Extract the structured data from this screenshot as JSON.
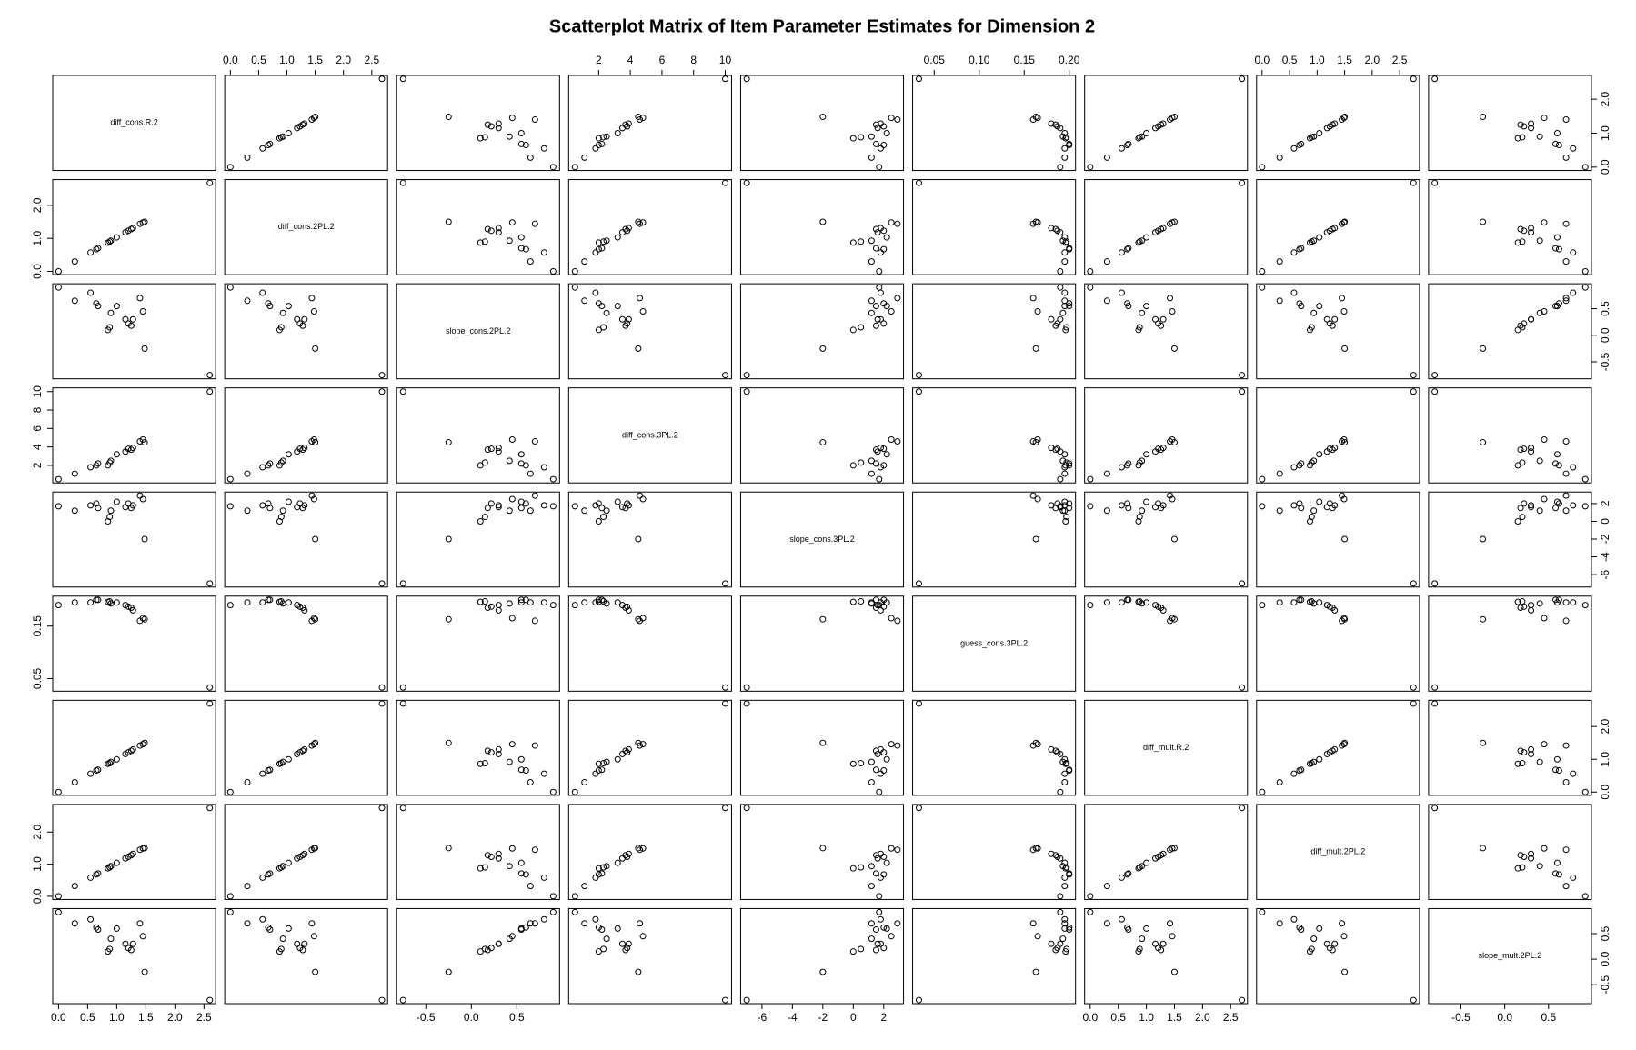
{
  "chart_data": {
    "type": "scatter-matrix",
    "title": "Scatterplot Matrix of Item Parameter Estimates for Dimension 2",
    "marker": "open-circle",
    "color": "#000000",
    "variables": [
      {
        "name": "diff_cons.R.2",
        "values": [
          0,
          0.28,
          0.55,
          0.65,
          0.68,
          0.85,
          0.88,
          0.9,
          1.0,
          1.15,
          1.2,
          1.25,
          1.28,
          1.4,
          1.45,
          1.48,
          2.6
        ],
        "lim": [
          -0.1,
          2.7
        ],
        "xticks": [
          {
            "value": 0,
            "label": "0.0"
          },
          0.5,
          {
            "value": 1,
            "label": "1.0"
          },
          1.5,
          {
            "value": 2,
            "label": "2.0"
          },
          2.5
        ],
        "yticks": [
          {
            "value": 0,
            "label": "0.0"
          },
          {
            "value": 1,
            "label": "1.0"
          },
          {
            "value": 2,
            "label": "2.0"
          }
        ]
      },
      {
        "name": "diff_cons.2PL.2",
        "values": [
          0,
          0.3,
          0.57,
          0.67,
          0.7,
          0.87,
          0.9,
          0.93,
          1.03,
          1.18,
          1.23,
          1.28,
          1.31,
          1.44,
          1.48,
          1.5,
          2.68
        ],
        "lim": [
          -0.1,
          2.78
        ],
        "xticks": [
          {
            "value": 0,
            "label": "0.0"
          },
          0.5,
          {
            "value": 1,
            "label": "1.0"
          },
          1.5,
          {
            "value": 2,
            "label": "2.0"
          },
          2.5
        ],
        "yticks": [
          {
            "value": 0,
            "label": "0.0"
          },
          {
            "value": 1,
            "label": "1.0"
          },
          {
            "value": 2,
            "label": "2.0"
          }
        ]
      },
      {
        "name": "slope_cons.2PL.2",
        "values": [
          0.9,
          0.65,
          0.8,
          0.6,
          0.55,
          0.1,
          0.15,
          0.42,
          0.55,
          0.3,
          0.22,
          0.18,
          0.3,
          0.7,
          0.45,
          -0.25,
          -0.75
        ],
        "lim": [
          -0.82,
          0.97
        ],
        "xticks": [
          -0.5,
          {
            "value": 0,
            "label": "0.0"
          },
          0.5
        ],
        "yticks": [
          -0.5,
          {
            "value": 0,
            "label": "0.0"
          },
          0.5
        ]
      },
      {
        "name": "diff_cons.3PL.2",
        "values": [
          0.5,
          1.1,
          1.8,
          2.0,
          2.2,
          2.0,
          2.3,
          2.5,
          3.2,
          3.5,
          3.8,
          3.7,
          3.9,
          4.6,
          4.8,
          4.5,
          10
        ],
        "lim": [
          0.1,
          10.4
        ],
        "xticks": [
          2,
          4,
          6,
          8,
          10
        ],
        "yticks": [
          2,
          4,
          6,
          8,
          10
        ]
      },
      {
        "name": "slope_cons.3PL.2",
        "values": [
          1.7,
          1.2,
          1.8,
          2.0,
          1.5,
          0,
          0.5,
          1.2,
          2.2,
          1.6,
          2.0,
          1.5,
          1.8,
          2.9,
          2.5,
          -2.0,
          -7
        ],
        "lim": [
          -7.4,
          3.3
        ],
        "xticks": [
          -6,
          -4,
          -2,
          0,
          2
        ],
        "yticks": [
          -6,
          -4,
          -2,
          0,
          2
        ]
      },
      {
        "name": "guess_cons.3PL.2",
        "values": [
          0.19,
          0.195,
          0.195,
          0.2,
          0.2,
          0.196,
          0.197,
          0.193,
          0.195,
          0.19,
          0.187,
          0.185,
          0.18,
          0.16,
          0.165,
          0.163,
          0.033
        ],
        "lim": [
          0.026,
          0.207
        ],
        "xticks": [
          0.05,
          {
            "value": 0.1,
            "label": "0.10"
          },
          0.15,
          {
            "value": 0.2,
            "label": "0.20"
          }
        ],
        "yticks": [
          0.05,
          0.15
        ]
      },
      {
        "name": "diff_mult.R.2",
        "values": [
          0,
          0.3,
          0.56,
          0.66,
          0.68,
          0.86,
          0.88,
          0.92,
          1.0,
          1.16,
          1.21,
          1.26,
          1.3,
          1.42,
          1.46,
          1.5,
          2.7
        ],
        "lim": [
          -0.1,
          2.8
        ],
        "xticks": [
          {
            "value": 0,
            "label": "0.0"
          },
          0.5,
          {
            "value": 1,
            "label": "1.0"
          },
          1.5,
          {
            "value": 2,
            "label": "2.0"
          },
          2.5
        ],
        "yticks": [
          {
            "value": 0,
            "label": "0.0"
          },
          {
            "value": 1,
            "label": "1.0"
          },
          {
            "value": 2,
            "label": "2.0"
          }
        ]
      },
      {
        "name": "diff_mult.2PL.2",
        "values": [
          0,
          0.32,
          0.58,
          0.68,
          0.71,
          0.87,
          0.9,
          0.94,
          1.04,
          1.18,
          1.23,
          1.28,
          1.32,
          1.45,
          1.49,
          1.5,
          2.75
        ],
        "lim": [
          -0.1,
          2.86
        ],
        "xticks": [
          {
            "value": 0,
            "label": "0.0"
          },
          0.5,
          {
            "value": 1,
            "label": "1.0"
          },
          1.5,
          {
            "value": 2,
            "label": "2.0"
          },
          2.5
        ],
        "yticks": [
          {
            "value": 0,
            "label": "0.0"
          },
          {
            "value": 1,
            "label": "1.0"
          },
          {
            "value": 2,
            "label": "2.0"
          }
        ]
      },
      {
        "name": "slope_mult.2PL.2",
        "values": [
          0.92,
          0.7,
          0.78,
          0.62,
          0.58,
          0.15,
          0.2,
          0.4,
          0.6,
          0.3,
          0.22,
          0.18,
          0.3,
          0.7,
          0.45,
          -0.25,
          -0.8
        ],
        "lim": [
          -0.87,
          0.99
        ],
        "xticks": [
          -0.5,
          {
            "value": 0,
            "label": "0.0"
          },
          0.5
        ],
        "yticks": [
          -0.5,
          {
            "value": 0,
            "label": "0.0"
          },
          0.5
        ]
      }
    ]
  }
}
